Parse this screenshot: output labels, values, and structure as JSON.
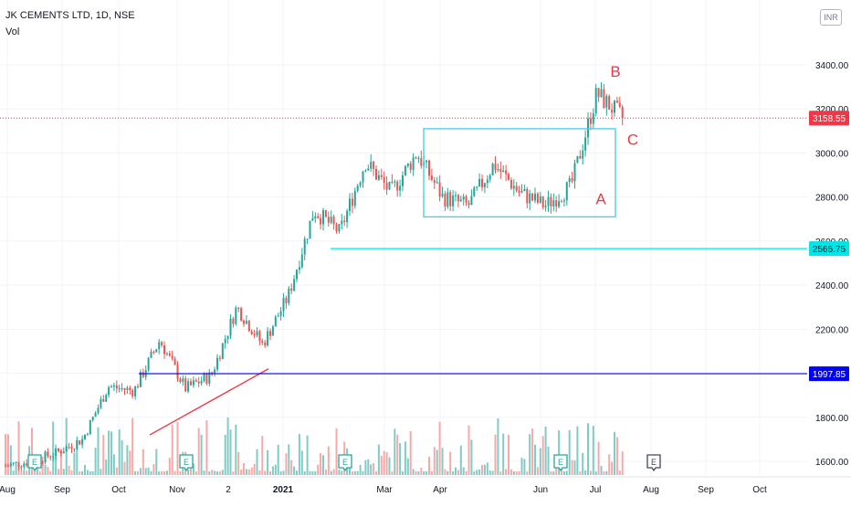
{
  "header": {
    "symbol_line": "JK CEMENTS LTD, 1D, NSE",
    "volume_label": "Vol",
    "currency": "INR"
  },
  "chart_data": {
    "type": "candlestick",
    "y_axis": {
      "range": [
        1540,
        3560
      ],
      "ticks": [
        "3400.00",
        "3200.00",
        "3000.00",
        "2800.00",
        "2600.00",
        "2400.00",
        "2200.00",
        "2000.00",
        "1800.00",
        "1600.00"
      ],
      "tick_values": [
        3400,
        3200,
        3000,
        2800,
        2600,
        2400,
        2200,
        2000,
        1800,
        1600
      ]
    },
    "x_axis": {
      "labels": [
        "Aug",
        "Sep",
        "Oct",
        "Nov",
        "2",
        "2021",
        "Mar",
        "Apr",
        "Jun",
        "Jul",
        "Aug",
        "Sep",
        "Oct"
      ],
      "bold": [
        "2021"
      ]
    },
    "price_series": [
      {
        "label": "Aug",
        "price": 1580
      },
      {
        "label": "Sep",
        "price": 1600
      },
      {
        "label": "Oct",
        "price": 1640
      },
      {
        "label": "Oct",
        "price": 1700
      },
      {
        "label": "Nov",
        "price": 1940
      },
      {
        "label": "Nov",
        "price": 1920
      },
      {
        "label": "Dec",
        "price": 2150
      },
      {
        "label": "Dec",
        "price": 1930
      },
      {
        "label": "2021",
        "price": 1990
      },
      {
        "label": "Jan",
        "price": 2300
      },
      {
        "label": "Jan",
        "price": 2130
      },
      {
        "label": "Feb",
        "price": 2350
      },
      {
        "label": "Feb",
        "price": 2740
      },
      {
        "label": "Feb",
        "price": 2640
      },
      {
        "label": "Mar",
        "price": 2960
      },
      {
        "label": "Mar",
        "price": 2820
      },
      {
        "label": "Apr",
        "price": 3000
      },
      {
        "label": "Apr",
        "price": 2800
      },
      {
        "label": "May",
        "price": 2760
      },
      {
        "label": "May",
        "price": 2950
      },
      {
        "label": "Jun",
        "price": 2820
      },
      {
        "label": "Jun",
        "price": 2760
      },
      {
        "label": "Jul",
        "price": 2850
      },
      {
        "label": "Jul",
        "price": 3270
      },
      {
        "label": "Jul",
        "price": 3158.55
      }
    ],
    "last_price": 3158.55,
    "horizontal_levels": [
      {
        "value": 2565.75,
        "label": "2565.75",
        "color": "#00e5e5"
      },
      {
        "value": 1997.85,
        "label": "1997.85",
        "color": "#0000ff"
      }
    ],
    "last_price_label": {
      "value": 3158.55,
      "label": "3158.55",
      "color": "#f23645"
    },
    "rectangle": {
      "date_from": "Mar",
      "date_to": "Jul",
      "price_high": 3110,
      "price_low": 2710,
      "color": "#4dd0e1"
    },
    "trendline": {
      "from_price": 1720,
      "to_price": 2020,
      "color": "#f23645"
    },
    "wave_labels": [
      "A",
      "B",
      "C"
    ],
    "earnings_markers": [
      "E",
      "E",
      "E",
      "E",
      "E"
    ],
    "colors": {
      "up": "#26a69a",
      "down": "#ef5350",
      "up_volume": "#80cbc4",
      "down_volume": "#f7a9a7",
      "grid": "#f0f3fa",
      "axis_text": "#131722"
    }
  }
}
